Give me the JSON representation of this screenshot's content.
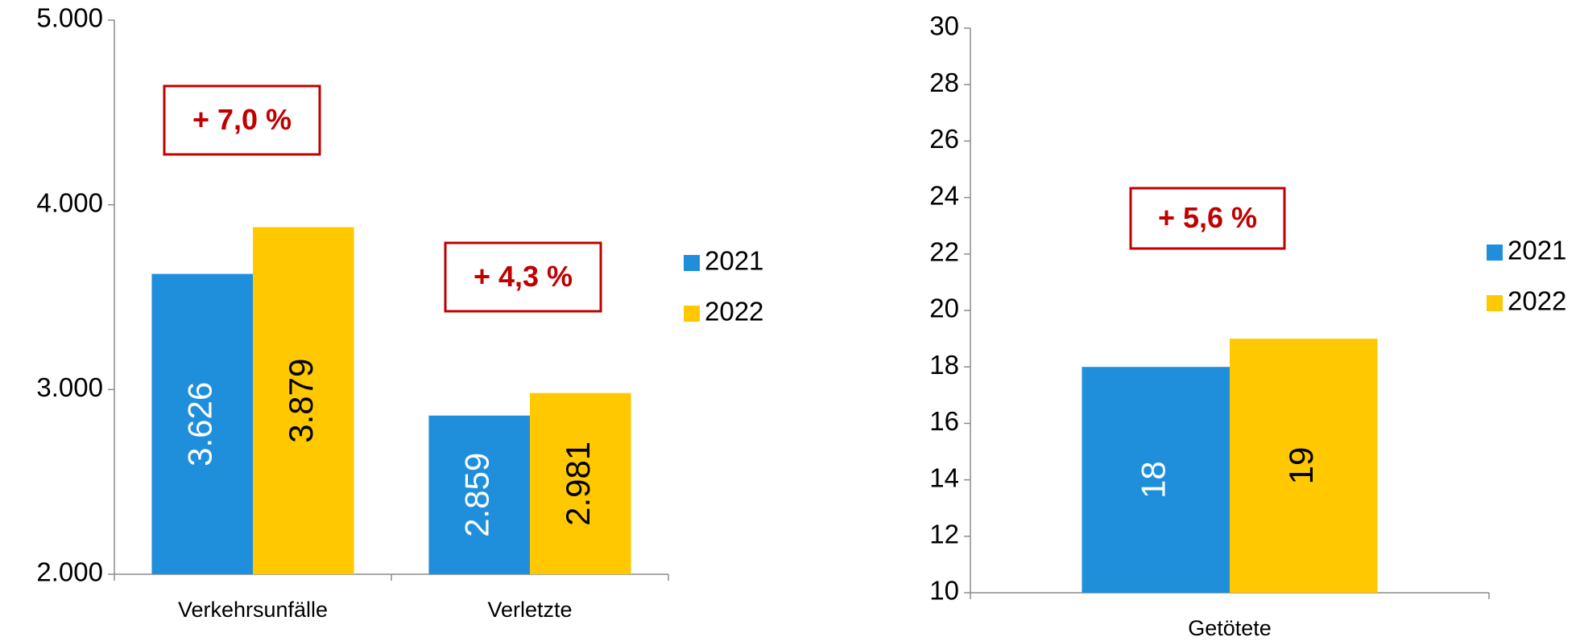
{
  "chart_data": [
    {
      "type": "bar",
      "categories": [
        "Verkehrsunfälle",
        "Verletzte"
      ],
      "series": [
        {
          "name": "2021",
          "color": "#1f8fdb",
          "label_color": "#ffffff",
          "values": [
            3626,
            2859
          ],
          "value_labels": [
            "3.626",
            "2.859"
          ]
        },
        {
          "name": "2022",
          "color": "#ffc800",
          "label_color": "#000000",
          "values": [
            3879,
            2981
          ],
          "value_labels": [
            "3.879",
            "2.981"
          ]
        }
      ],
      "ylim": [
        2000,
        5000
      ],
      "yticks": [
        {
          "value": 2000,
          "label": "2.000"
        },
        {
          "value": 3000,
          "label": "3.000"
        },
        {
          "value": 4000,
          "label": "4.000"
        },
        {
          "value": 5000,
          "label": "5.000"
        }
      ],
      "annotations": [
        "+ 7,0 %",
        "+ 4,3 %"
      ],
      "legend": "right"
    },
    {
      "type": "bar",
      "categories": [
        "Getötete"
      ],
      "series": [
        {
          "name": "2021",
          "color": "#1f8fdb",
          "label_color": "#ffffff",
          "values": [
            18
          ]
        },
        {
          "name": "2022",
          "color": "#ffc800",
          "label_color": "#000000",
          "values": [
            19
          ]
        }
      ],
      "ylim": [
        10,
        30
      ],
      "yticks": [
        10,
        12,
        14,
        16,
        18,
        20,
        22,
        24,
        26,
        28,
        30
      ],
      "annotations": [
        "+ 5,6 %"
      ],
      "legend": "right"
    }
  ]
}
